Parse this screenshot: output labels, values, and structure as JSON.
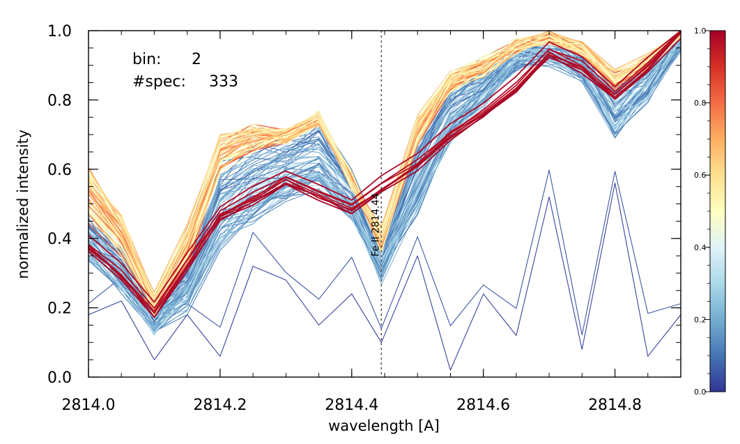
{
  "chart_data": {
    "type": "line",
    "title": "",
    "xlabel": "wavelength [A]",
    "ylabel": "normalized intensity",
    "xlim": [
      2814.0,
      2814.9
    ],
    "ylim": [
      0.0,
      1.0
    ],
    "x_ticks": [
      "2814.0",
      "2814.2",
      "2814.4",
      "2814.6",
      "2814.8"
    ],
    "y_ticks": [
      "0.0",
      "0.2",
      "0.4",
      "0.6",
      "0.8",
      "1.0"
    ],
    "annotations": {
      "bin_label": "bin:",
      "bin_value": "2",
      "spec_label": "#spec:",
      "spec_value": "333"
    },
    "reference_line": {
      "x": 2814.445,
      "label": "Fe II 2814.44"
    },
    "colorbar": {
      "range": [
        0.0,
        1.0
      ],
      "ticks": [
        "0.0",
        "0.2",
        "0.4",
        "0.6",
        "0.8",
        "1.0"
      ],
      "colors": [
        "#313695",
        "#4575b4",
        "#74add1",
        "#abd9e9",
        "#e0f3f8",
        "#ffffbf",
        "#fee090",
        "#fdae61",
        "#f46d43",
        "#d73027",
        "#a50026"
      ]
    },
    "x": [
      2814.0,
      2814.05,
      2814.1,
      2814.15,
      2814.2,
      2814.25,
      2814.3,
      2814.35,
      2814.4,
      2814.445,
      2814.5,
      2814.55,
      2814.6,
      2814.65,
      2814.7,
      2814.75,
      2814.8,
      2814.85,
      2814.9
    ],
    "profiles": {
      "low": [
        0.36,
        0.27,
        0.14,
        0.21,
        0.39,
        0.46,
        0.52,
        0.55,
        0.47,
        0.3,
        0.5,
        0.7,
        0.8,
        0.9,
        0.92,
        0.88,
        0.72,
        0.82,
        0.97
      ],
      "mid": [
        0.46,
        0.36,
        0.19,
        0.33,
        0.6,
        0.66,
        0.69,
        0.74,
        0.58,
        0.37,
        0.68,
        0.83,
        0.88,
        0.95,
        0.98,
        0.94,
        0.84,
        0.9,
        1.0
      ],
      "high": [
        0.6,
        0.46,
        0.23,
        0.43,
        0.69,
        0.72,
        0.7,
        0.75,
        0.55,
        0.42,
        0.74,
        0.87,
        0.91,
        0.96,
        0.98,
        0.95,
        0.87,
        0.92,
        1.0
      ],
      "dark_red": [
        0.38,
        0.3,
        0.19,
        0.33,
        0.47,
        0.52,
        0.57,
        0.53,
        0.49,
        0.55,
        0.62,
        0.7,
        0.77,
        0.84,
        0.94,
        0.9,
        0.82,
        0.9,
        1.0
      ],
      "outlier": [
        0.18,
        0.22,
        0.05,
        0.18,
        0.06,
        0.32,
        0.28,
        0.15,
        0.24,
        0.1,
        0.35,
        0.02,
        0.24,
        0.12,
        0.52,
        0.08,
        0.56,
        0.06,
        0.18
      ]
    },
    "series_counts": {
      "blue_group": 70,
      "orange_group": 60,
      "dark_red_group": 8
    }
  }
}
